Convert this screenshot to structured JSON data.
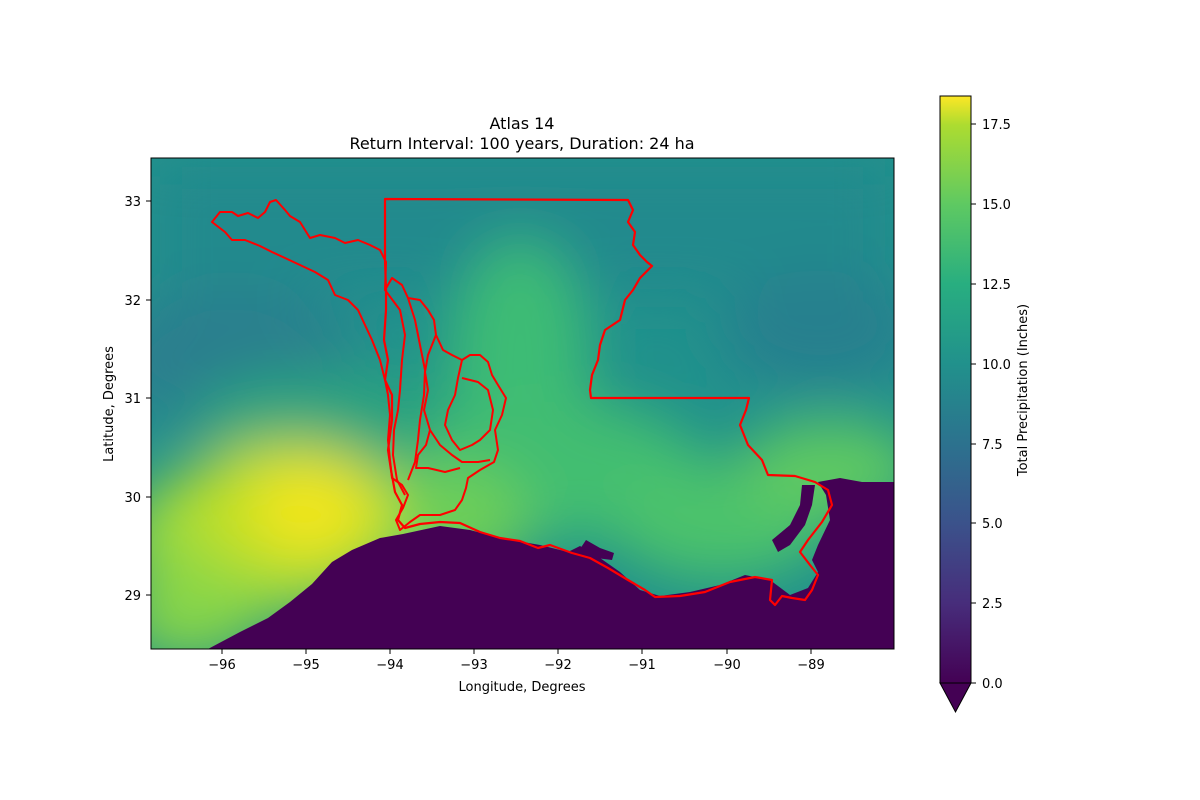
{
  "figure": {
    "title": "Atlas 14",
    "subtitle": "Return Interval: 100 years, Duration: 24 ha",
    "xlabel": "Longitude, Degrees",
    "ylabel": "Latitude, Degrees"
  },
  "chart_data": {
    "type": "heatmap",
    "title": "Atlas 14",
    "subtitle": "Return Interval: 100 years, Duration: 24 ha",
    "xlabel": "Longitude, Degrees",
    "ylabel": "Latitude, Degrees",
    "xlim": [
      -96.85,
      -88.1
    ],
    "ylim": [
      28.45,
      33.45
    ],
    "x_ticks": [
      -96,
      -95,
      -94,
      -93,
      -92,
      -91,
      -90,
      -89
    ],
    "x_tick_labels": [
      "−96",
      "−95",
      "−94",
      "−93",
      "−92",
      "−91",
      "−90",
      "−89"
    ],
    "y_ticks": [
      29,
      30,
      31,
      32,
      33
    ],
    "y_tick_labels": [
      "29",
      "30",
      "31",
      "32",
      "33"
    ],
    "colormap": "viridis",
    "colorbar": {
      "label": "Total Precipitation (Inches)",
      "range": [
        0,
        18.4
      ],
      "extend": "min",
      "ticks": [
        0,
        2.5,
        5,
        7.5,
        10,
        12.5,
        15,
        17.5
      ],
      "tick_labels": [
        "0.0",
        "2.5",
        "5.0",
        "7.5",
        "10.0",
        "12.5",
        "15.0",
        "17.5"
      ]
    },
    "approximate_values": [
      {
        "region": "southeast Texas coast maximum",
        "lon": -94.9,
        "lat": 29.9,
        "value": 18.0
      },
      {
        "region": "southwest Louisiana",
        "lon": -93.2,
        "lat": 30.0,
        "value": 15.5
      },
      {
        "region": "north Louisiana / Arkansas",
        "lon": -92.5,
        "lat": 33.0,
        "value": 10.0
      },
      {
        "region": "northeast Texas",
        "lon": -95.5,
        "lat": 31.5,
        "value": 11.0
      },
      {
        "region": "Gulf of Mexico (masked)",
        "lon": -91.0,
        "lat": 28.8,
        "value": 0.0
      }
    ],
    "overlay": "red outlines: Louisiana state boundary and river basin watersheds"
  },
  "colors": {
    "boundary": "#ff0000",
    "ocean": "#440154",
    "high": "#f3e51e",
    "low": "#21918c"
  }
}
